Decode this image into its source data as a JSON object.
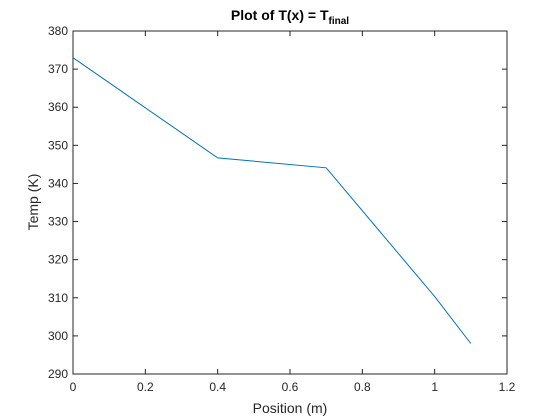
{
  "chart_data": {
    "type": "line",
    "title": "Plot of T(x) = T",
    "title_subscript": "final",
    "xlabel": "Position (m)",
    "ylabel": "Temp (K)",
    "xlim": [
      0,
      1.2
    ],
    "ylim": [
      290,
      380
    ],
    "xticks": [
      0,
      0.2,
      0.4,
      0.6,
      0.8,
      1,
      1.2
    ],
    "yticks": [
      290,
      300,
      310,
      320,
      330,
      340,
      350,
      360,
      370,
      380
    ],
    "grid": false,
    "series": [
      {
        "x": [
          0,
          0.4,
          0.7,
          1.0,
          1.1
        ],
        "y": [
          373,
          346.7,
          344.1,
          310.3,
          298
        ],
        "color": "#0072BD"
      }
    ]
  }
}
